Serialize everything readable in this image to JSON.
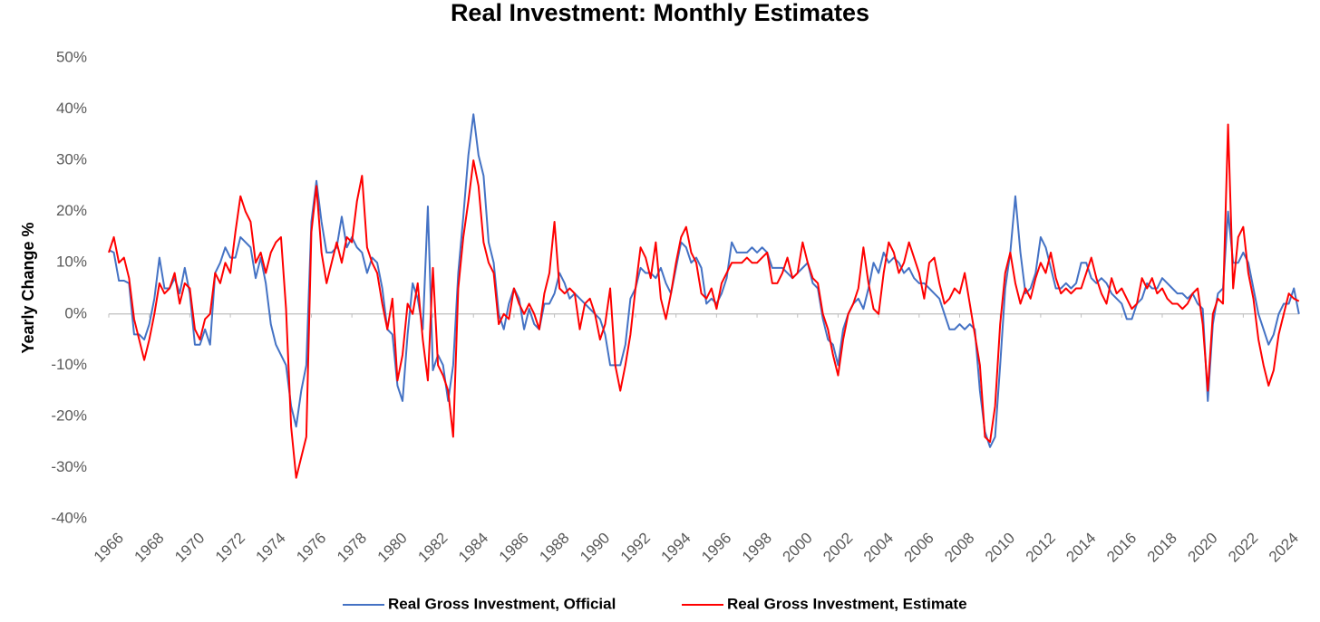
{
  "chart_data": {
    "type": "line",
    "title": "Real Investment: Monthly Estimates",
    "y_label": "Yearly Change %",
    "xlim": [
      1966,
      2024.75
    ],
    "xticks": [
      1966,
      1968,
      1970,
      1972,
      1974,
      1976,
      1978,
      1980,
      1982,
      1984,
      1986,
      1988,
      1990,
      1992,
      1994,
      1996,
      1998,
      2000,
      2002,
      2004,
      2006,
      2008,
      2010,
      2012,
      2014,
      2016,
      2018,
      2020,
      2022,
      2024
    ],
    "ylim": [
      -40,
      50
    ],
    "yticks": [
      {
        "value": -40,
        "label": "-40%"
      },
      {
        "value": -30,
        "label": "-30%"
      },
      {
        "value": -20,
        "label": "-20%"
      },
      {
        "value": -10,
        "label": "-10%"
      },
      {
        "value": 0,
        "label": "0%"
      },
      {
        "value": 10,
        "label": "10%"
      },
      {
        "value": 20,
        "label": "20%"
      },
      {
        "value": 30,
        "label": "30%"
      },
      {
        "value": 40,
        "label": "40%"
      },
      {
        "value": 50,
        "label": "50%"
      }
    ],
    "grid": false,
    "legend": "bottom",
    "x": [
      1966,
      1966.25,
      1966.5,
      1966.75,
      1967,
      1967.25,
      1967.5,
      1967.75,
      1968,
      1968.25,
      1968.5,
      1968.75,
      1969,
      1969.25,
      1969.5,
      1969.75,
      1970,
      1970.25,
      1970.5,
      1970.75,
      1971,
      1971.25,
      1971.5,
      1971.75,
      1972,
      1972.25,
      1972.5,
      1972.75,
      1973,
      1973.25,
      1973.5,
      1973.75,
      1974,
      1974.25,
      1974.5,
      1974.75,
      1975,
      1975.25,
      1975.5,
      1975.75,
      1976,
      1976.25,
      1976.5,
      1976.75,
      1977,
      1977.25,
      1977.5,
      1977.75,
      1978,
      1978.25,
      1978.5,
      1978.75,
      1979,
      1979.25,
      1979.5,
      1979.75,
      1980,
      1980.25,
      1980.5,
      1980.75,
      1981,
      1981.25,
      1981.5,
      1981.75,
      1982,
      1982.25,
      1982.5,
      1982.75,
      1983,
      1983.25,
      1983.5,
      1983.75,
      1984,
      1984.25,
      1984.5,
      1984.75,
      1985,
      1985.25,
      1985.5,
      1985.75,
      1986,
      1986.25,
      1986.5,
      1986.75,
      1987,
      1987.25,
      1987.5,
      1987.75,
      1988,
      1988.25,
      1988.5,
      1988.75,
      1989,
      1989.25,
      1989.5,
      1989.75,
      1990,
      1990.25,
      1990.5,
      1990.75,
      1991,
      1991.25,
      1991.5,
      1991.75,
      1992,
      1992.25,
      1992.5,
      1992.75,
      1993,
      1993.25,
      1993.5,
      1993.75,
      1994,
      1994.25,
      1994.5,
      1994.75,
      1995,
      1995.25,
      1995.5,
      1995.75,
      1996,
      1996.25,
      1996.5,
      1996.75,
      1997,
      1997.25,
      1997.5,
      1997.75,
      1998,
      1998.25,
      1998.5,
      1998.75,
      1999,
      1999.25,
      1999.5,
      1999.75,
      2000,
      2000.25,
      2000.5,
      2000.75,
      2001,
      2001.25,
      2001.5,
      2001.75,
      2002,
      2002.25,
      2002.5,
      2002.75,
      2003,
      2003.25,
      2003.5,
      2003.75,
      2004,
      2004.25,
      2004.5,
      2004.75,
      2005,
      2005.25,
      2005.5,
      2005.75,
      2006,
      2006.25,
      2006.5,
      2006.75,
      2007,
      2007.25,
      2007.5,
      2007.75,
      2008,
      2008.25,
      2008.5,
      2008.75,
      2009,
      2009.25,
      2009.5,
      2009.75,
      2010,
      2010.25,
      2010.5,
      2010.75,
      2011,
      2011.25,
      2011.5,
      2011.75,
      2012,
      2012.25,
      2012.5,
      2012.75,
      2013,
      2013.25,
      2013.5,
      2013.75,
      2014,
      2014.25,
      2014.5,
      2014.75,
      2015,
      2015.25,
      2015.5,
      2015.75,
      2016,
      2016.25,
      2016.5,
      2016.75,
      2017,
      2017.25,
      2017.5,
      2017.75,
      2018,
      2018.25,
      2018.5,
      2018.75,
      2019,
      2019.25,
      2019.5,
      2019.75,
      2020,
      2020.25,
      2020.5,
      2020.75,
      2021,
      2021.25,
      2021.5,
      2021.75,
      2022,
      2022.25,
      2022.5,
      2022.75,
      2023,
      2023.25,
      2023.5,
      2023.75,
      2024,
      2024.25,
      2024.5,
      2024.75
    ],
    "series": [
      {
        "name": "Real Gross Investment, Official",
        "color": "#4472c4",
        "values": [
          12.5,
          12,
          6.5,
          6.5,
          6,
          -4,
          -4,
          -5,
          -2,
          3,
          11,
          5,
          5,
          7,
          4,
          9,
          4,
          -6,
          -6,
          -3,
          -6,
          8,
          10,
          13,
          11,
          11,
          15,
          14,
          13,
          7,
          11,
          6,
          -2,
          -6,
          -8,
          -10,
          -18,
          -22,
          -15,
          -10,
          18,
          26,
          18,
          12,
          12,
          13,
          19,
          13,
          15,
          13,
          12,
          8,
          11,
          10,
          5,
          -3,
          -4,
          -14,
          -17,
          -4,
          6,
          3,
          -3,
          21,
          -11,
          -8,
          -10,
          -17,
          -10,
          8,
          19,
          31,
          39,
          31,
          27,
          14,
          10,
          0,
          -3,
          2,
          5,
          3,
          -3,
          1,
          -2,
          -3,
          2,
          2,
          4,
          8,
          6,
          3,
          4,
          3,
          2,
          1,
          0,
          -1,
          -4,
          -10,
          -10,
          -10,
          -6,
          3,
          5,
          9,
          8,
          8,
          7,
          9,
          6,
          4,
          9,
          14,
          13,
          10,
          11,
          9,
          2,
          3,
          2,
          4,
          7,
          14,
          12,
          12,
          12,
          13,
          12,
          13,
          12,
          9,
          9,
          9,
          8,
          7,
          8,
          9,
          10,
          6,
          5,
          -1,
          -5,
          -6,
          -10,
          -3,
          0,
          2,
          3,
          1,
          5,
          10,
          8,
          12,
          10,
          11,
          10,
          8,
          9,
          7,
          6,
          6,
          5,
          4,
          3,
          0,
          -3,
          -3,
          -2,
          -3,
          -2,
          -3,
          -15,
          -23,
          -26,
          -24,
          -10,
          5,
          12,
          23,
          12,
          4,
          5,
          8,
          15,
          13,
          9,
          5,
          5,
          6,
          5,
          6,
          10,
          10,
          7,
          6,
          7,
          6,
          4,
          3,
          2,
          -1,
          -1,
          2,
          3,
          6,
          5,
          5,
          7,
          6,
          5,
          4,
          4,
          3,
          4,
          2,
          1,
          -17,
          -2,
          4,
          5,
          20,
          10,
          10,
          12,
          10,
          5,
          0,
          -3,
          -6,
          -4,
          0,
          2,
          2,
          5,
          0
        ]
      },
      {
        "name": "Real Gross Investment, Estimate",
        "color": "#ff0000",
        "values": [
          12,
          15,
          10,
          11,
          7,
          -1,
          -5,
          -9,
          -5,
          0,
          6,
          4,
          5,
          8,
          2,
          6,
          5,
          -3,
          -5,
          -1,
          0,
          8,
          6,
          10,
          8,
          16,
          23,
          20,
          18,
          10,
          12,
          8,
          12,
          14,
          15,
          1,
          -22,
          -32,
          -28,
          -24,
          16,
          25,
          12,
          6,
          10,
          14,
          10,
          15,
          14,
          22,
          27,
          13,
          10,
          8,
          2,
          -3,
          3,
          -13,
          -8,
          2,
          0,
          6,
          -5,
          -13,
          9,
          -10,
          -12,
          -15,
          -24,
          5,
          15,
          22,
          30,
          25,
          14,
          10,
          8,
          -2,
          0,
          -1,
          5,
          2,
          0,
          2,
          0,
          -3,
          4,
          8,
          18,
          5,
          4,
          5,
          4,
          -3,
          2,
          3,
          0,
          -5,
          -2,
          5,
          -10,
          -15,
          -10,
          -4,
          5,
          13,
          11,
          7,
          14,
          3,
          -1,
          4,
          10,
          15,
          17,
          12,
          10,
          4,
          3,
          5,
          1,
          6,
          8,
          10,
          10,
          10,
          11,
          10,
          10,
          11,
          12,
          6,
          6,
          8,
          11,
          7,
          8,
          14,
          10,
          7,
          6,
          0,
          -3,
          -8,
          -12,
          -5,
          0,
          2,
          5,
          13,
          6,
          1,
          0,
          8,
          14,
          12,
          8,
          10,
          14,
          11,
          8,
          3,
          10,
          11,
          6,
          2,
          3,
          5,
          4,
          8,
          2,
          -4,
          -10,
          -24,
          -25,
          -18,
          -2,
          8,
          12,
          6,
          2,
          5,
          3,
          7,
          10,
          8,
          12,
          7,
          4,
          5,
          4,
          5,
          5,
          8,
          11,
          7,
          4,
          2,
          7,
          4,
          5,
          3,
          1,
          2,
          7,
          5,
          7,
          4,
          5,
          3,
          2,
          2,
          1,
          2,
          4,
          5,
          -2,
          -15,
          0,
          3,
          2,
          37,
          5,
          15,
          17,
          8,
          3,
          -5,
          -10,
          -14,
          -11,
          -4,
          0,
          4,
          3,
          2.5
        ]
      }
    ]
  }
}
